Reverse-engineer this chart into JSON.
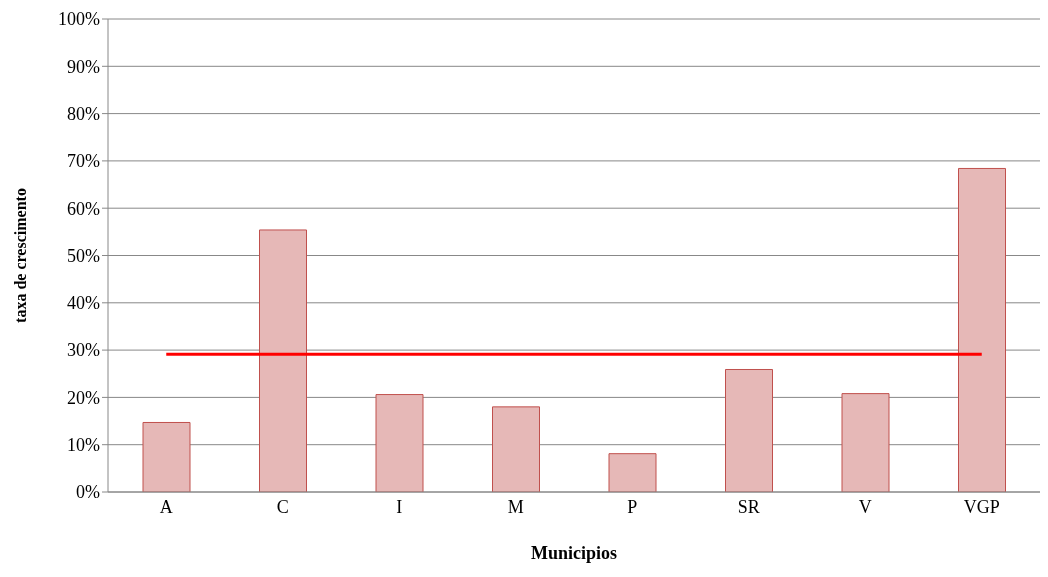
{
  "chart_data": {
    "type": "bar",
    "xlabel": "Municipios",
    "ylabel": "taxa de crescimento",
    "categories": [
      "A",
      "C",
      "I",
      "M",
      "P",
      "SR",
      "V",
      "VGP"
    ],
    "series": [
      {
        "color": "#e6b8b7",
        "values": [
          14.7,
          55.4,
          20.6,
          18.0,
          8.1,
          25.9,
          20.8,
          68.4
        ]
      },
      {
        "type": "line",
        "color": "#ff0000",
        "values": [
          29.1,
          29.1,
          29.1,
          29.1,
          29.1,
          29.1,
          29.1,
          29.1
        ]
      }
    ],
    "ylim": [
      0,
      100
    ],
    "yticks": [
      {
        "value": 0,
        "label": "0%"
      },
      {
        "value": 10,
        "label": "10%"
      },
      {
        "value": 20,
        "label": "20%"
      },
      {
        "value": 30,
        "label": "30%"
      },
      {
        "value": 40,
        "label": "40%"
      },
      {
        "value": 50,
        "label": "50%"
      },
      {
        "value": 60,
        "label": "60%"
      },
      {
        "value": 70,
        "label": "70%"
      },
      {
        "value": 80,
        "label": "80%"
      },
      {
        "value": 90,
        "label": "90%"
      },
      {
        "value": 100,
        "label": "100%"
      }
    ],
    "grid": "y",
    "legend": false,
    "marker": "none"
  }
}
